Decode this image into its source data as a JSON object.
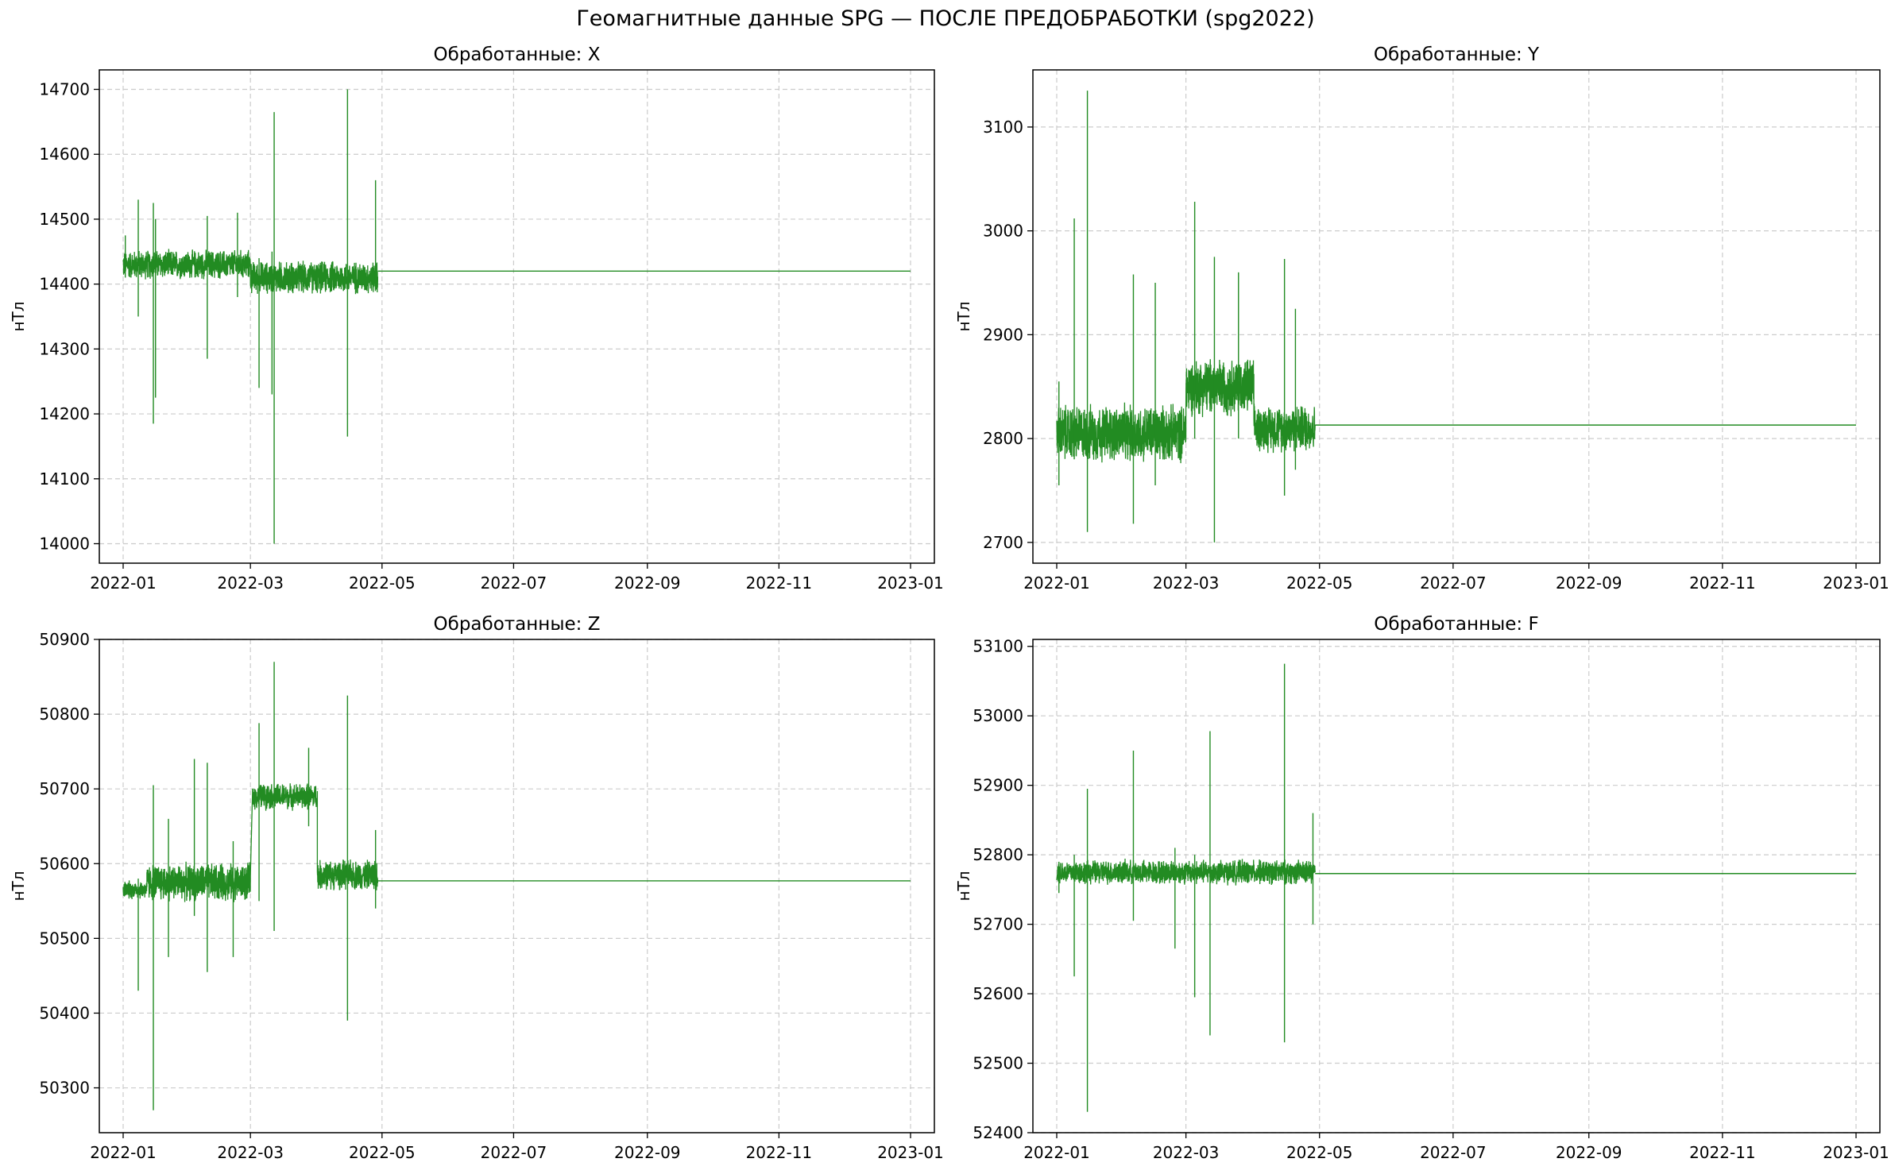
{
  "figure": {
    "title": "Геомагнитные данные SPG — ПОСЛЕ ПРЕДОБРАБОТКИ (spg2022)"
  },
  "colors": {
    "line": "#228b22",
    "grid": "#cccccc",
    "axes": "#000000"
  },
  "chart_data": [
    {
      "type": "line",
      "title": "Обработанные: X",
      "ylabel": "нТл",
      "xlabel": "",
      "x_range": [
        "2022-01-01",
        "2023-01-01"
      ],
      "ylim": [
        13970,
        14730
      ],
      "x_ticks": [
        "2022-01",
        "2022-03",
        "2022-05",
        "2022-07",
        "2022-09",
        "2022-11",
        "2023-01"
      ],
      "y_ticks": [
        14000,
        14100,
        14200,
        14300,
        14400,
        14500,
        14600,
        14700
      ],
      "grid": true,
      "series": [
        {
          "data_end": "2022-04-29",
          "noisy_segments": [
            {
              "start": "2022-01-01",
              "end": "2022-03-01",
              "center": 14430,
              "spread": 18
            },
            {
              "start": "2022-03-01",
              "end": "2022-04-29",
              "center": 14410,
              "spread": 20
            }
          ],
          "spikes": [
            {
              "x": "2022-01-02",
              "low": 14410,
              "high": 14475
            },
            {
              "x": "2022-01-08",
              "low": 14350,
              "high": 14530
            },
            {
              "x": "2022-01-15",
              "low": 14185,
              "high": 14525
            },
            {
              "x": "2022-01-16",
              "low": 14225,
              "high": 14500
            },
            {
              "x": "2022-02-09",
              "low": 14285,
              "high": 14505
            },
            {
              "x": "2022-02-23",
              "low": 14380,
              "high": 14510
            },
            {
              "x": "2022-03-05",
              "low": 14240,
              "high": 14440
            },
            {
              "x": "2022-03-12",
              "low": 14000,
              "high": 14665
            },
            {
              "x": "2022-03-11",
              "low": 14230,
              "high": 14450
            },
            {
              "x": "2022-04-15",
              "low": 14165,
              "high": 14700
            },
            {
              "x": "2022-04-28",
              "low": 14400,
              "high": 14560
            }
          ],
          "flat_value": 14420,
          "flat_start": "2022-04-29",
          "flat_end": "2023-01-01"
        }
      ]
    },
    {
      "type": "line",
      "title": "Обработанные: Y",
      "ylabel": "нТл",
      "xlabel": "",
      "x_range": [
        "2022-01-01",
        "2023-01-01"
      ],
      "ylim": [
        2680,
        3155
      ],
      "x_ticks": [
        "2022-01",
        "2022-03",
        "2022-05",
        "2022-07",
        "2022-09",
        "2022-11",
        "2023-01"
      ],
      "y_ticks": [
        2700,
        2800,
        2900,
        3000,
        3100
      ],
      "grid": true,
      "series": [
        {
          "data_end": "2022-04-29",
          "noisy_segments": [
            {
              "start": "2022-01-01",
              "end": "2022-03-01",
              "center": 2805,
              "spread": 22
            },
            {
              "start": "2022-03-01",
              "end": "2022-04-01",
              "center": 2850,
              "spread": 22
            },
            {
              "start": "2022-04-01",
              "end": "2022-04-29",
              "center": 2810,
              "spread": 18
            }
          ],
          "spikes": [
            {
              "x": "2022-01-02",
              "low": 2755,
              "high": 2855
            },
            {
              "x": "2022-01-09",
              "low": 2780,
              "high": 3012
            },
            {
              "x": "2022-01-15",
              "low": 2710,
              "high": 3135
            },
            {
              "x": "2022-02-05",
              "low": 2718,
              "high": 2958
            },
            {
              "x": "2022-02-15",
              "low": 2755,
              "high": 2950
            },
            {
              "x": "2022-03-05",
              "low": 2800,
              "high": 3028
            },
            {
              "x": "2022-03-14",
              "low": 2700,
              "high": 2975
            },
            {
              "x": "2022-03-25",
              "low": 2800,
              "high": 2960
            },
            {
              "x": "2022-04-15",
              "low": 2745,
              "high": 2973
            },
            {
              "x": "2022-04-20",
              "low": 2770,
              "high": 2925
            }
          ],
          "flat_value": 2813,
          "flat_start": "2022-04-29",
          "flat_end": "2023-01-01"
        }
      ]
    },
    {
      "type": "line",
      "title": "Обработанные: Z",
      "ylabel": "нТл",
      "xlabel": "",
      "x_range": [
        "2022-01-01",
        "2023-01-01"
      ],
      "ylim": [
        50240,
        50900
      ],
      "x_ticks": [
        "2022-01",
        "2022-03",
        "2022-05",
        "2022-07",
        "2022-09",
        "2022-11",
        "2023-01"
      ],
      "y_ticks": [
        50300,
        50400,
        50500,
        50600,
        50700,
        50800,
        50900
      ],
      "grid": true,
      "series": [
        {
          "data_end": "2022-04-29",
          "noisy_segments": [
            {
              "start": "2022-01-01",
              "end": "2022-01-12",
              "center": 50565,
              "spread": 10
            },
            {
              "start": "2022-01-12",
              "end": "2022-03-01",
              "center": 50575,
              "spread": 20
            },
            {
              "start": "2022-03-02",
              "end": "2022-04-01",
              "center": 50690,
              "spread": 14
            },
            {
              "start": "2022-04-01",
              "end": "2022-04-29",
              "center": 50585,
              "spread": 16
            }
          ],
          "spikes": [
            {
              "x": "2022-01-08",
              "low": 50430,
              "high": 50580
            },
            {
              "x": "2022-01-15",
              "low": 50270,
              "high": 50705
            },
            {
              "x": "2022-01-22",
              "low": 50475,
              "high": 50660
            },
            {
              "x": "2022-02-03",
              "low": 50530,
              "high": 50740
            },
            {
              "x": "2022-02-09",
              "low": 50455,
              "high": 50735
            },
            {
              "x": "2022-02-21",
              "low": 50475,
              "high": 50630
            },
            {
              "x": "2022-03-05",
              "low": 50550,
              "high": 50788
            },
            {
              "x": "2022-03-12",
              "low": 50510,
              "high": 50870
            },
            {
              "x": "2022-03-28",
              "low": 50650,
              "high": 50755
            },
            {
              "x": "2022-04-15",
              "low": 50390,
              "high": 50825
            },
            {
              "x": "2022-04-28",
              "low": 50540,
              "high": 50645
            }
          ],
          "flat_value": 50577,
          "flat_start": "2022-04-29",
          "flat_end": "2023-01-01"
        }
      ]
    },
    {
      "type": "line",
      "title": "Обработанные: F",
      "ylabel": "нТл",
      "xlabel": "",
      "x_range": [
        "2022-01-01",
        "2023-01-01"
      ],
      "ylim": [
        52400,
        53110
      ],
      "x_ticks": [
        "2022-01",
        "2022-03",
        "2022-05",
        "2022-07",
        "2022-09",
        "2022-11",
        "2023-01"
      ],
      "y_ticks": [
        52400,
        52500,
        52600,
        52700,
        52800,
        52900,
        53000,
        53100
      ],
      "grid": true,
      "series": [
        {
          "data_end": "2022-04-29",
          "noisy_segments": [
            {
              "start": "2022-01-01",
              "end": "2022-04-29",
              "center": 52775,
              "spread": 14
            }
          ],
          "spikes": [
            {
              "x": "2022-01-02",
              "low": 52745,
              "high": 52790
            },
            {
              "x": "2022-01-09",
              "low": 52625,
              "high": 52800
            },
            {
              "x": "2022-01-15",
              "low": 52430,
              "high": 52895
            },
            {
              "x": "2022-02-05",
              "low": 52705,
              "high": 52950
            },
            {
              "x": "2022-02-24",
              "low": 52665,
              "high": 52810
            },
            {
              "x": "2022-03-05",
              "low": 52595,
              "high": 52800
            },
            {
              "x": "2022-03-12",
              "low": 52540,
              "high": 52978
            },
            {
              "x": "2022-04-15",
              "low": 52530,
              "high": 53075
            },
            {
              "x": "2022-04-28",
              "low": 52700,
              "high": 52860
            }
          ],
          "flat_value": 52773,
          "flat_start": "2022-04-29",
          "flat_end": "2023-01-01"
        }
      ]
    }
  ]
}
